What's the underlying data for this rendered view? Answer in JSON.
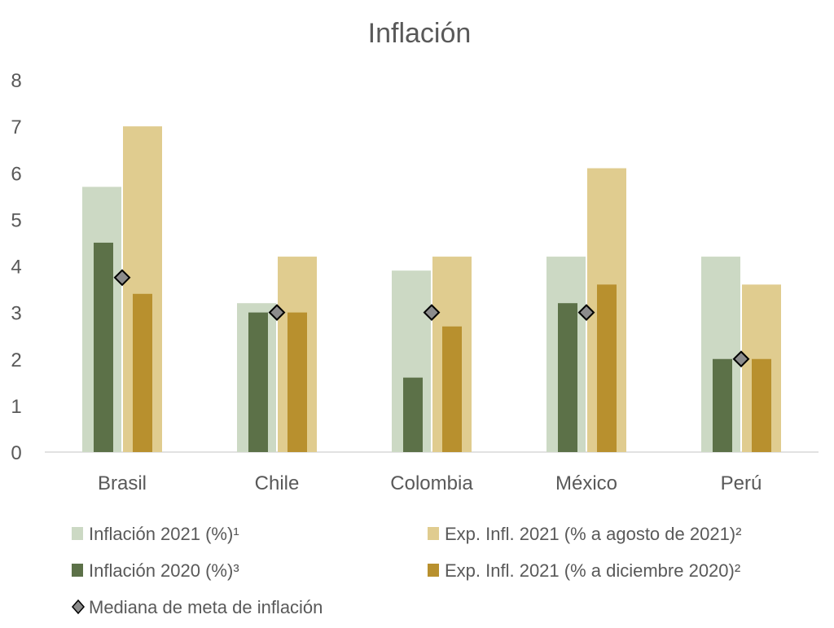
{
  "chart_data": {
    "type": "bar",
    "title": "Inflación",
    "categories": [
      "Brasil",
      "Chile",
      "Colombia",
      "México",
      "Perú"
    ],
    "ylim": [
      0,
      8
    ],
    "yticks": [
      0,
      1,
      2,
      3,
      4,
      5,
      6,
      7,
      8
    ],
    "grid": false,
    "legend_position": "bottom",
    "series": [
      {
        "name": "Inflación 2021 (%)¹",
        "kind": "wide-bar",
        "color": "#ccd9c4",
        "values": [
          5.7,
          3.2,
          3.9,
          4.2,
          4.2
        ]
      },
      {
        "name": "Exp. Infl. 2021 (% a agosto de 2021)²",
        "kind": "wide-bar",
        "color": "#e0cc8f",
        "values": [
          7.0,
          4.2,
          4.2,
          6.1,
          3.6
        ]
      },
      {
        "name": "Inflación 2020 (%)³",
        "kind": "narrow-bar",
        "color": "#5c7148",
        "values": [
          4.5,
          3.0,
          1.6,
          3.2,
          2.0
        ]
      },
      {
        "name": "Exp. Infl. 2021 (% a diciembre 2020)²",
        "kind": "narrow-bar",
        "color": "#b8902e",
        "values": [
          3.4,
          3.0,
          2.7,
          3.6,
          2.0
        ]
      },
      {
        "name": "Mediana de meta de inflación",
        "kind": "marker",
        "marker": "diamond",
        "color": "#8c8c8c",
        "values": [
          3.75,
          3.0,
          3.0,
          3.0,
          2.0
        ]
      }
    ]
  }
}
